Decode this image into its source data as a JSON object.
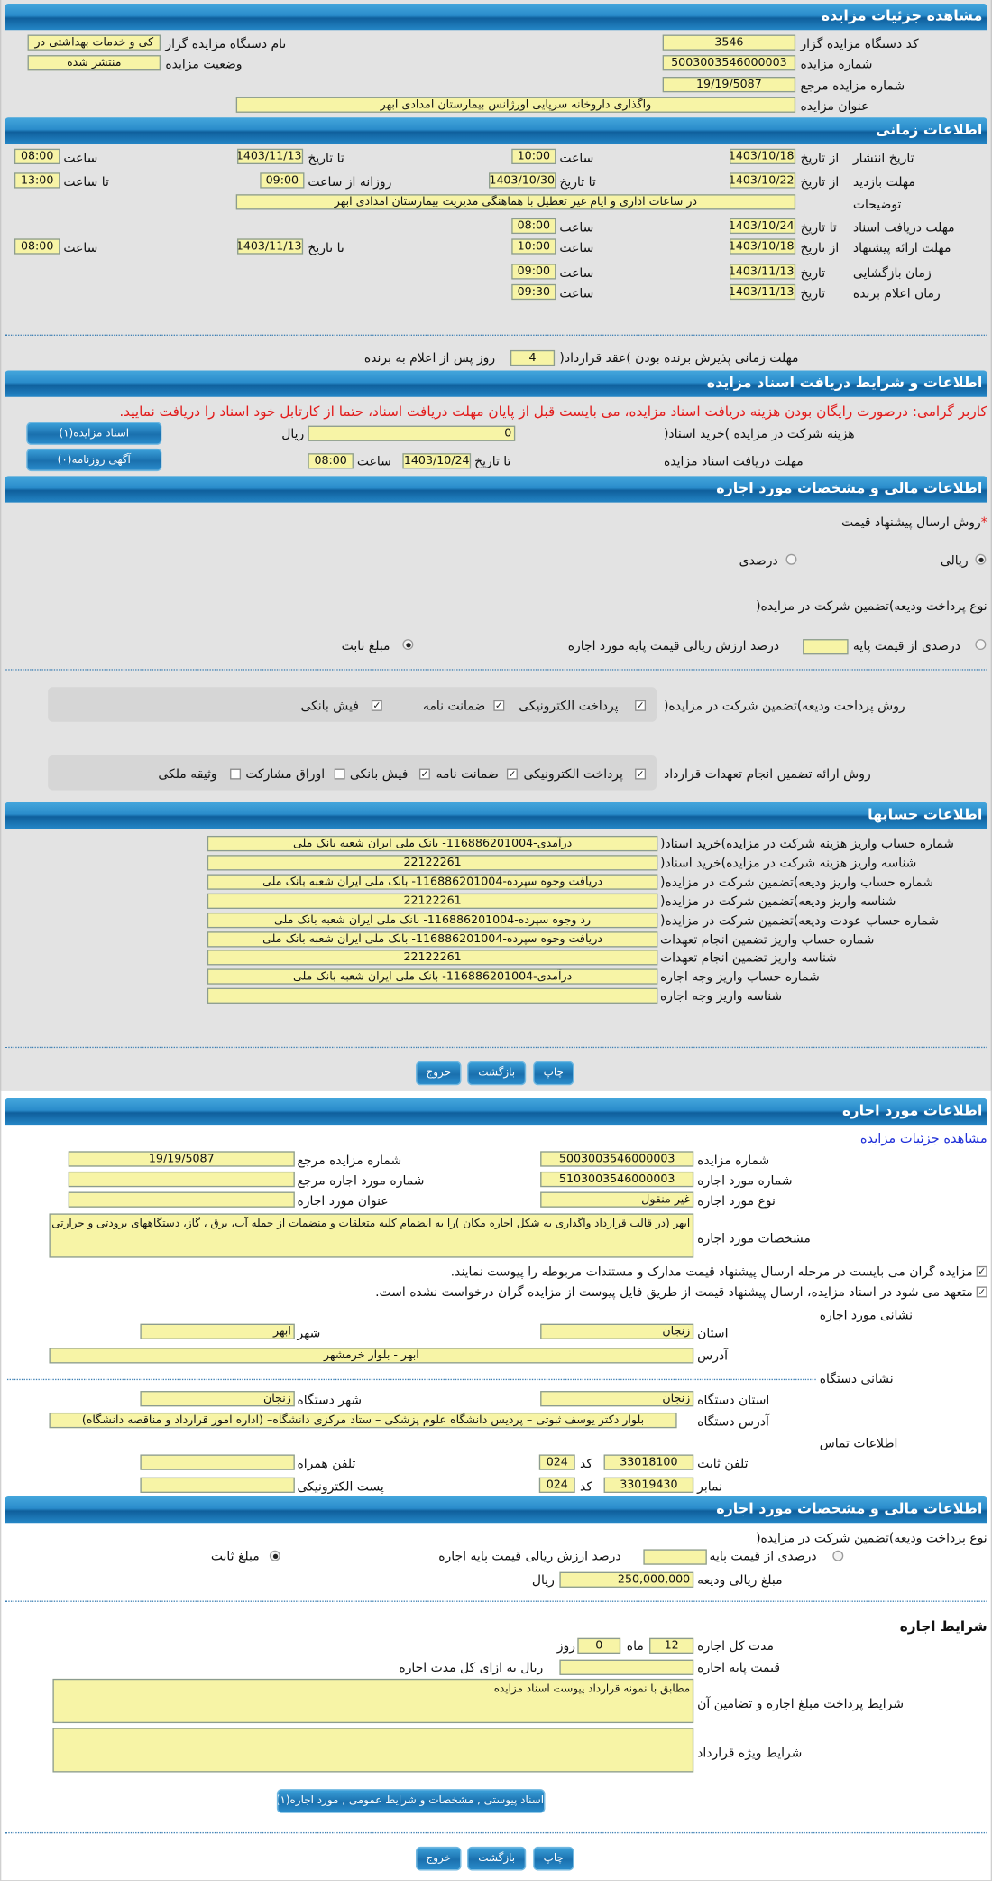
{
  "colors": {
    "header": "#2a8ccb",
    "input_bg": "#f7f4a6",
    "notice": "#e21b1b",
    "link": "#1f2fd8"
  },
  "auction": {
    "title": "مشاهده جزئیات مزایده",
    "org_code_label": "کد دستگاه مزایده گزار",
    "org_code": "3546",
    "org_name_label": "نام دستگاه مزایده گزار",
    "org_name": "کی و خدمات بهداشتی  در",
    "number_label": "شماره مزایده",
    "number": "5003003546000003",
    "status_label": "وضعیت مزایده",
    "status": "منتشر شده",
    "ref_label": "شماره مزایده مرجع",
    "ref": "19/19/5087",
    "subject_label": "عنوان مزایده",
    "subject": "واگذاری داروخانه سرپایی اورژانس بیمارستان امدادی ابهر"
  },
  "timing": {
    "title": "اطلاعات زمانی",
    "publish": {
      "label": "تاریخ انتشار",
      "from_label": "از تاریخ",
      "from_date": "1403/10/18",
      "time_label": "ساعت",
      "from_time": "10:00",
      "to_label": "تا تاریخ",
      "to_date": "1403/11/13",
      "time2_label": "ساعت",
      "to_time": "08:00"
    },
    "visit": {
      "label": "مهلت بازدید",
      "from_label": "از تاریخ",
      "from_date": "1403/10/22",
      "to_label": "تا تاریخ",
      "to_date": "1403/10/30",
      "daily_label": "روزانه از ساعت",
      "daily_from": "09:00",
      "until_label": "تا ساعت",
      "daily_to": "13:00"
    },
    "notes_label": "توضیحات",
    "notes": "در ساعات اداری و ایام غیر تعطیل با هماهنگی مدیریت بیمارستان امدادی ابهر",
    "docs": {
      "label": "مهلت دریافت اسناد",
      "to_label": "تا تاریخ",
      "date": "1403/10/24",
      "time_label": "ساعت",
      "time": "08:00"
    },
    "offer": {
      "label": "مهلت ارائه پیشنهاد",
      "from_label": "از تاریخ",
      "from_date": "1403/10/18",
      "time_label": "ساعت",
      "from_time": "10:00",
      "to_label": "تا تاریخ",
      "to_date": "1403/11/13",
      "time2_label": "ساعت",
      "to_time": "08:00"
    },
    "opening": {
      "label": "زمان بازگشایی",
      "date_label": "تاریخ",
      "date": "1403/11/13",
      "time_label": "ساعت",
      "time": "09:00"
    },
    "winner": {
      "label": "زمان اعلام برنده",
      "date_label": "تاریخ",
      "date": "1403/11/13",
      "time_label": "ساعت",
      "time": "09:30"
    },
    "acceptance": {
      "label": "مهلت زمانی پذیرش برنده بودن )عقد قرارداد(",
      "days": "4",
      "suffix": "روز پس از اعلام به برنده"
    }
  },
  "documents": {
    "title": "اطلاعات و شرایط دریافت اسناد مزایده",
    "notice": "کاربر گرامی: درصورت رایگان بودن هزینه دریافت اسناد مزایده، می بایست قبل از پایان مهلت دریافت اسناد، حتما از کارتابل خود اسناد را دریافت نمایید.",
    "fee_label": "هزینه شرکت در مزایده )خرید اسناد(",
    "fee": "0",
    "currency": "ریال",
    "docs_button": "اسناد مزایده(۱)",
    "deadline_label": "مهلت دریافت اسناد مزایده",
    "to_label": "تا تاریخ",
    "date": "1403/10/24",
    "time_label": "ساعت",
    "time": "08:00",
    "newspaper_button": "آگهی روزنامه(۰)"
  },
  "financial": {
    "title": "اطلاعات مالی و مشخصات مورد اجاره",
    "price_method_label": "روش ارسال پیشنهاد قیمت",
    "required_mark": "*",
    "price_methods": [
      {
        "label": "ریالی",
        "selected": true
      },
      {
        "label": "درصدی",
        "selected": false
      }
    ],
    "deposit_type_label": "نوع پرداخت ودیعه)تضمین شرکت در مزایده(",
    "deposit_percent_label": "درصدی از قیمت پایه",
    "deposit_percent_value": "",
    "deposit_percent_suffix": "درصد ارزش ریالی قیمت پایه مورد اجاره",
    "deposit_percent_selected": false,
    "deposit_fixed_label": "مبلغ ثابت",
    "deposit_fixed_selected": true,
    "deposit_methods_label": "روش پرداخت ودیعه)تضمین شرکت در مزایده(",
    "deposit_methods": [
      {
        "label": "پرداخت الکترونیکی",
        "checked": true
      },
      {
        "label": "ضمانت نامه",
        "checked": true
      },
      {
        "label": "فیش بانکی",
        "checked": true
      }
    ],
    "guarantee_label": "روش ارائه تضمین انجام تعهدات قرارداد",
    "guarantee_methods": [
      {
        "label": "پرداخت الکترونیکی",
        "checked": true
      },
      {
        "label": "ضمانت نامه",
        "checked": true
      },
      {
        "label": "فیش بانکی",
        "checked": true
      },
      {
        "label": "اوراق مشارکت",
        "checked": false
      },
      {
        "label": "وثیقه ملکی",
        "checked": false
      }
    ]
  },
  "accounts": {
    "title": "اطلاعات حسابها",
    "rows": [
      {
        "label": "شماره حساب واریز هزینه شرکت در مزایده)خرید اسناد(",
        "value": "درآمدی-116886201004- بانک ملی ایران شعبه بانک ملی"
      },
      {
        "label": "شناسه واریز هزینه شرکت در مزایده)خرید اسناد(",
        "value": "22122261"
      },
      {
        "label": "شماره حساب واریز ودیعه)تضمین شرکت در مزایده(",
        "value": "دریافت وجوه سپرده-116886201004- بانک ملی ایران شعبه بانک ملی"
      },
      {
        "label": "شناسه واریز ودیعه)تضمین شرکت در مزایده(",
        "value": "22122261"
      },
      {
        "label": "شماره حساب عودت ودیعه)تضمین شرکت در مزایده(",
        "value": "رد وجوه سپرده-116886201004- بانک ملی ایران شعبه بانک ملی"
      },
      {
        "label": "شماره حساب واریز تضمین انجام تعهدات",
        "value": "دریافت وجوه سپرده-116886201004- بانک ملی ایران شعبه بانک ملی"
      },
      {
        "label": "شناسه واریز تضمین انجام تعهدات",
        "value": "22122261"
      },
      {
        "label": "شماره حساب واریز وجه اجاره",
        "value": "درآمدی-116886201004- بانک ملی ایران شعبه بانک ملی"
      },
      {
        "label": "شناسه واریز وجه اجاره",
        "value": ""
      }
    ]
  },
  "actions": {
    "print": "چاپ",
    "back": "بازگشت",
    "exit": "خروج"
  },
  "lease": {
    "title": "اطلاعات مورد اجاره",
    "details_link": "مشاهده جزئیات مزایده",
    "auction_number_label": "شماره مزایده",
    "auction_number": "5003003546000003",
    "auction_ref_label": "شماره مزایده مرجع",
    "auction_ref": "19/19/5087",
    "item_number_label": "شماره مورد اجاره",
    "item_number": "5103003546000003",
    "item_ref_label": "شماره مورد اجاره مرجع",
    "item_ref": "",
    "item_type_label": "نوع مورد اجاره",
    "item_type": "غیر منقول",
    "item_title_label": "عنوان مورد اجاره",
    "item_title": "",
    "specs_label": "مشخصات مورد اجاره",
    "specs": "ابهر (در قالب قرارداد واگذاری به شکل اجاره مکان )را به  انضمام کلیه متعلقات و منضمات از جمله آب، برق ، گاز، دستگاههای برودتی و حرارتی",
    "confirm_1": "مزایده گران می بایست در مرحله ارسال پیشنهاد قیمت مدارک و مستندات مربوطه را پیوست نمایند.",
    "confirm_2": "متعهد می شود در اسناد مزایده، ارسال پیشنهاد قیمت از طریق فایل پیوست از مزایده گران درخواست نشده است.",
    "address_title": "نشانی مورد اجاره",
    "province_label": "استان",
    "province": "زنجان",
    "city_label": "شهر",
    "city": "ابهر",
    "address_label": "آدرس",
    "address": "ابهر - بلوار خرمشهر",
    "org_address_title": "نشانی دستگاه",
    "org_province_label": "استان دستگاه",
    "org_province": "زنجان",
    "org_city_label": "شهر دستگاه",
    "org_city": "زنجان",
    "org_address_label": "آدرس دستگاه",
    "org_address": "بلوار دکتر یوسف ثبوتی – پردیس دانشگاه علوم پزشکی  –  ستاد مرکزی دانشگاه– (اداره امور قرارداد و مناقصه دانشگاه)",
    "contact_title": "اطلاعات تماس",
    "phone_label": "تلفن ثابت",
    "phone": "33018100",
    "code_label": "کد",
    "phone_code": "024",
    "mobile_label": "تلفن همراه",
    "mobile": "",
    "fax_label": "نمابر",
    "fax": "33019430",
    "fax_code": "024",
    "email_label": "پست الکترونیکی",
    "email": ""
  },
  "lease_financial": {
    "title": "اطلاعات مالی و مشخصات مورد اجاره",
    "deposit_type_label": "نوع پرداخت ودیعه)تضمین شرکت در مزایده(",
    "percent_label": "درصدی از قیمت پایه",
    "percent_value": "",
    "percent_suffix": "درصد ارزش ریالی قیمت پایه اجاره",
    "percent_selected": false,
    "fixed_label": "مبلغ ثابت",
    "fixed_selected": true,
    "deposit_amount_label": "مبلغ ریالی ودیعه",
    "deposit_amount": "250,000,000",
    "currency": "ریال",
    "terms_title": "شرایط اجاره",
    "duration_label": "مدت کل اجاره",
    "months": "12",
    "months_label": "ماه",
    "days": "0",
    "days_label": "روز",
    "base_price_label": "قیمت پایه اجاره",
    "base_price": "",
    "base_price_suffix": "ریال به ازای کل مدت اجاره",
    "payment_terms_label": "شرایط پرداخت مبلغ اجاره و تضامین آن",
    "payment_terms": "مطابق با نمونه قرارداد پیوست اسناد مزایده",
    "special_terms_label": "شرایط ویژه قرارداد",
    "special_terms": "",
    "attachments_button": "اسناد پیوستی , مشخصات و شرایط عمومی , مورد اجاره(۱)"
  }
}
